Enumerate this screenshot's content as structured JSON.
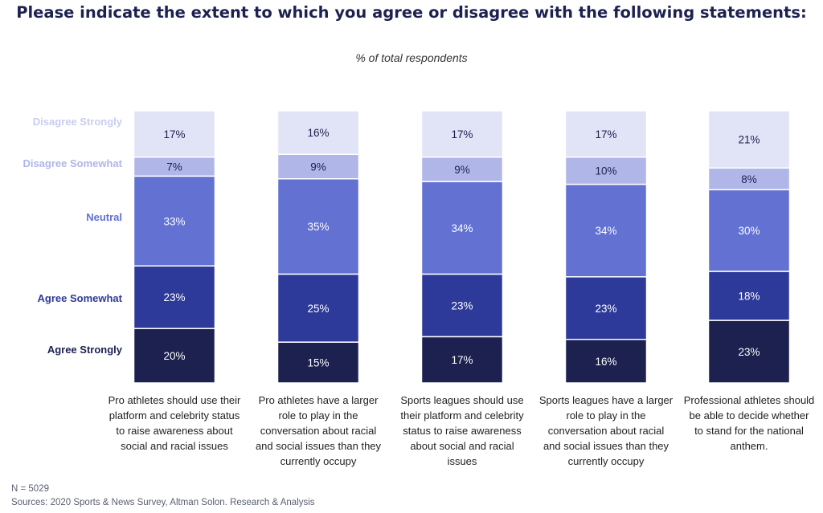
{
  "title": "Please indicate the extent to which you agree or disagree with the following statements:",
  "subtitle": "% of total respondents",
  "footer": {
    "n": "N = 5029",
    "sources": "Sources: 2020 Sports & News Survey, Altman Solon. Research & Analysis"
  },
  "chart_data": {
    "type": "bar",
    "stacked": true,
    "unit": "%",
    "ylim": [
      0,
      100
    ],
    "categories": [
      [
        "Pro athletes should use their",
        "platform and celebrity status",
        "to raise awareness about",
        "social and racial issues"
      ],
      [
        "Pro athletes have a larger",
        "role to play in the",
        "conversation about racial",
        "and social issues than they",
        "currently occupy"
      ],
      [
        "Sports leagues should use",
        "their platform and celebrity",
        "status to raise awareness",
        "about social and racial",
        "issues"
      ],
      [
        "Sports leagues have a larger",
        "role to play in the",
        "conversation about racial",
        "and social issues than they",
        "currently occupy"
      ],
      [
        "Professional athletes should",
        "be able to decide whether",
        "to stand for the national",
        "anthem."
      ]
    ],
    "series": [
      {
        "name": "Agree Strongly",
        "color": "#1c2150",
        "label_color": "#ffffff",
        "values": [
          20,
          15,
          17,
          16,
          23
        ]
      },
      {
        "name": "Agree Somewhat",
        "color": "#2e3a99",
        "label_color": "#ffffff",
        "values": [
          23,
          25,
          23,
          23,
          18
        ]
      },
      {
        "name": "Neutral",
        "color": "#6271d2",
        "label_color": "#ffffff",
        "values": [
          33,
          35,
          34,
          34,
          30
        ]
      },
      {
        "name": "Disagree Somewhat",
        "color": "#b0b6e8",
        "label_color": "#1c2150",
        "values": [
          7,
          9,
          9,
          10,
          8
        ]
      },
      {
        "name": "Disagree Strongly",
        "color": "#e1e3f6",
        "label_color": "#1c2150",
        "values": [
          17,
          16,
          17,
          17,
          21
        ]
      }
    ],
    "legend_colors": [
      "#1c2150",
      "#2e3a99",
      "#6271d2",
      "#b0b6e8",
      "#c9cdee"
    ]
  }
}
